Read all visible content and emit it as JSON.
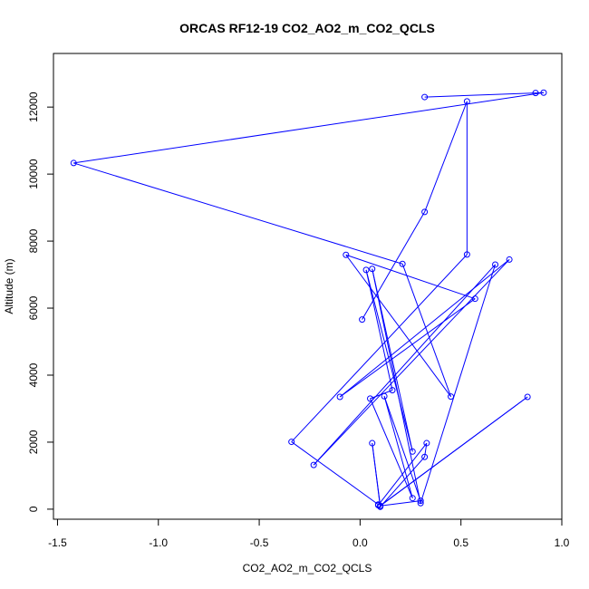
{
  "chart_data": {
    "type": "line",
    "title": "ORCAS RF12-19 CO2_AO2_m_CO2_QCLS",
    "xlabel": "CO2_AO2_m_CO2_QCLS",
    "ylabel": "Altitude (m)",
    "xlim": [
      -1.52,
      1.0
    ],
    "ylim": [
      -300,
      13600
    ],
    "x_ticks": [
      -1.5,
      -1.0,
      -0.5,
      0.0,
      0.5,
      1.0
    ],
    "x_tick_labels": [
      "-1.5",
      "-1.0",
      "-0.5",
      "0.0",
      "0.5",
      "1.0"
    ],
    "y_ticks": [
      0,
      2000,
      4000,
      6000,
      8000,
      10000,
      12000
    ],
    "y_tick_labels": [
      "0",
      "2000",
      "4000",
      "6000",
      "8000",
      "10000",
      "12000"
    ],
    "grid": false,
    "series": [
      {
        "color": "#0000ff",
        "marker": "open-circle",
        "points": [
          {
            "x": 0.32,
            "y": 12300
          },
          {
            "x": 0.87,
            "y": 12420
          },
          {
            "x": 0.91,
            "y": 12430
          },
          {
            "x": -1.42,
            "y": 10330
          },
          {
            "x": 0.21,
            "y": 7320
          },
          {
            "x": 0.45,
            "y": 3360
          },
          {
            "x": -0.07,
            "y": 7590
          },
          {
            "x": 0.57,
            "y": 6280
          },
          {
            "x": -0.1,
            "y": 3350
          },
          {
            "x": 0.74,
            "y": 7450
          },
          {
            "x": -0.23,
            "y": 1320
          },
          {
            "x": 0.67,
            "y": 7300
          },
          {
            "x": 0.3,
            "y": 180
          },
          {
            "x": 0.06,
            "y": 7170
          },
          {
            "x": 0.26,
            "y": 1720
          },
          {
            "x": 0.03,
            "y": 7140
          },
          {
            "x": 0.16,
            "y": 3550
          },
          {
            "x": 0.05,
            "y": 3300
          },
          {
            "x": 0.26,
            "y": 330
          },
          {
            "x": 0.12,
            "y": 3370
          },
          {
            "x": 0.3,
            "y": 250
          },
          {
            "x": 0.1,
            "y": 100
          },
          {
            "x": 0.83,
            "y": 3350
          },
          {
            "x": 0.1,
            "y": 100
          },
          {
            "x": 0.06,
            "y": 1970
          },
          {
            "x": 0.1,
            "y": 70
          },
          {
            "x": 0.32,
            "y": 1560
          },
          {
            "x": 0.33,
            "y": 1970
          },
          {
            "x": 0.09,
            "y": 120
          },
          {
            "x": 0.09,
            "y": 140
          },
          {
            "x": -0.34,
            "y": 2010
          },
          {
            "x": 0.53,
            "y": 7600
          },
          {
            "x": 0.53,
            "y": 12170
          },
          {
            "x": 0.32,
            "y": 8870
          },
          {
            "x": 0.01,
            "y": 5660
          }
        ]
      }
    ]
  }
}
